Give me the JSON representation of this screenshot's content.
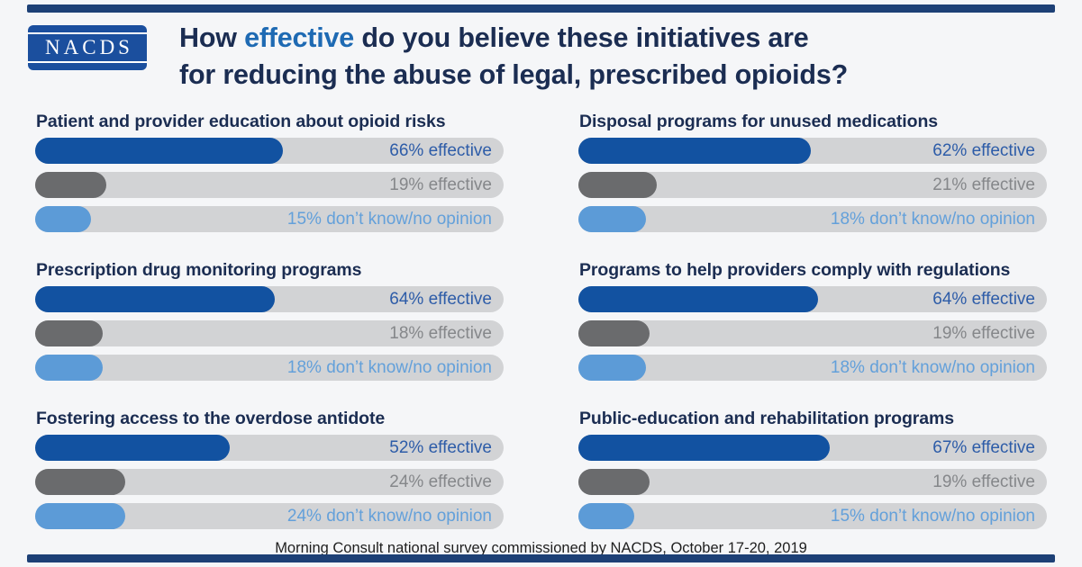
{
  "logo": {
    "text": "NACDS"
  },
  "title": {
    "part1": "How",
    "highlight": "effective",
    "part2": "do you believe these initiatives are",
    "line2": "for reducing the abuse of legal, prescribed opioids?",
    "highlight_color": "#1e6ab3",
    "text_color": "#1b2d52"
  },
  "footer": {
    "text": "Morning Consult national survey commissioned by NACDS, October 17-20, 2019"
  },
  "chart_data": {
    "type": "bar",
    "orientation": "horizontal",
    "title": "How effective do you believe these initiatives are for reducing the abuse of legal, prescribed opioids?",
    "unit": "%",
    "xlim": [
      0,
      125
    ],
    "grid": false,
    "legend": "none",
    "track_color": "#d2d3d5",
    "row_meaning": [
      "effective",
      "effective",
      "don't know/no opinion"
    ],
    "groups": [
      {
        "title": "Patient and provider education about opioid risks",
        "bars": [
          {
            "value": 66,
            "label": "66% effective",
            "color": "#1252a1",
            "label_color": "#2d5ca8"
          },
          {
            "value": 19,
            "label": "19% effective",
            "color": "#6a6b6d",
            "label_color": "#85878a"
          },
          {
            "value": 15,
            "label": "15% don’t know/no opinion",
            "color": "#5c9bd7",
            "label_color": "#63a0da"
          }
        ]
      },
      {
        "title": "Disposal programs for unused medications",
        "bars": [
          {
            "value": 62,
            "label": "62% effective",
            "color": "#1252a1",
            "label_color": "#2d5ca8"
          },
          {
            "value": 21,
            "label": "21% effective",
            "color": "#6a6b6d",
            "label_color": "#85878a"
          },
          {
            "value": 18,
            "label": "18% don’t know/no opinion",
            "color": "#5c9bd7",
            "label_color": "#63a0da"
          }
        ]
      },
      {
        "title": "Prescription drug monitoring programs",
        "bars": [
          {
            "value": 64,
            "label": "64% effective",
            "color": "#1252a1",
            "label_color": "#2d5ca8"
          },
          {
            "value": 18,
            "label": "18% effective",
            "color": "#6a6b6d",
            "label_color": "#85878a"
          },
          {
            "value": 18,
            "label": "18% don’t know/no opinion",
            "color": "#5c9bd7",
            "label_color": "#63a0da"
          }
        ]
      },
      {
        "title": "Programs to help providers comply with regulations",
        "bars": [
          {
            "value": 64,
            "label": "64% effective",
            "color": "#1252a1",
            "label_color": "#2d5ca8"
          },
          {
            "value": 19,
            "label": "19% effective",
            "color": "#6a6b6d",
            "label_color": "#85878a"
          },
          {
            "value": 18,
            "label": "18% don’t know/no opinion",
            "color": "#5c9bd7",
            "label_color": "#63a0da"
          }
        ]
      },
      {
        "title": "Fostering access to the overdose antidote",
        "bars": [
          {
            "value": 52,
            "label": "52% effective",
            "color": "#1252a1",
            "label_color": "#2d5ca8"
          },
          {
            "value": 24,
            "label": "24% effective",
            "color": "#6a6b6d",
            "label_color": "#85878a"
          },
          {
            "value": 24,
            "label": "24% don’t know/no opinion",
            "color": "#5c9bd7",
            "label_color": "#63a0da"
          }
        ]
      },
      {
        "title": "Public-education and rehabilitation programs",
        "bars": [
          {
            "value": 67,
            "label": "67% effective",
            "color": "#1252a1",
            "label_color": "#2d5ca8"
          },
          {
            "value": 19,
            "label": "19% effective",
            "color": "#6a6b6d",
            "label_color": "#85878a"
          },
          {
            "value": 15,
            "label": "15% don’t know/no opinion",
            "color": "#5c9bd7",
            "label_color": "#63a0da"
          }
        ]
      }
    ]
  }
}
